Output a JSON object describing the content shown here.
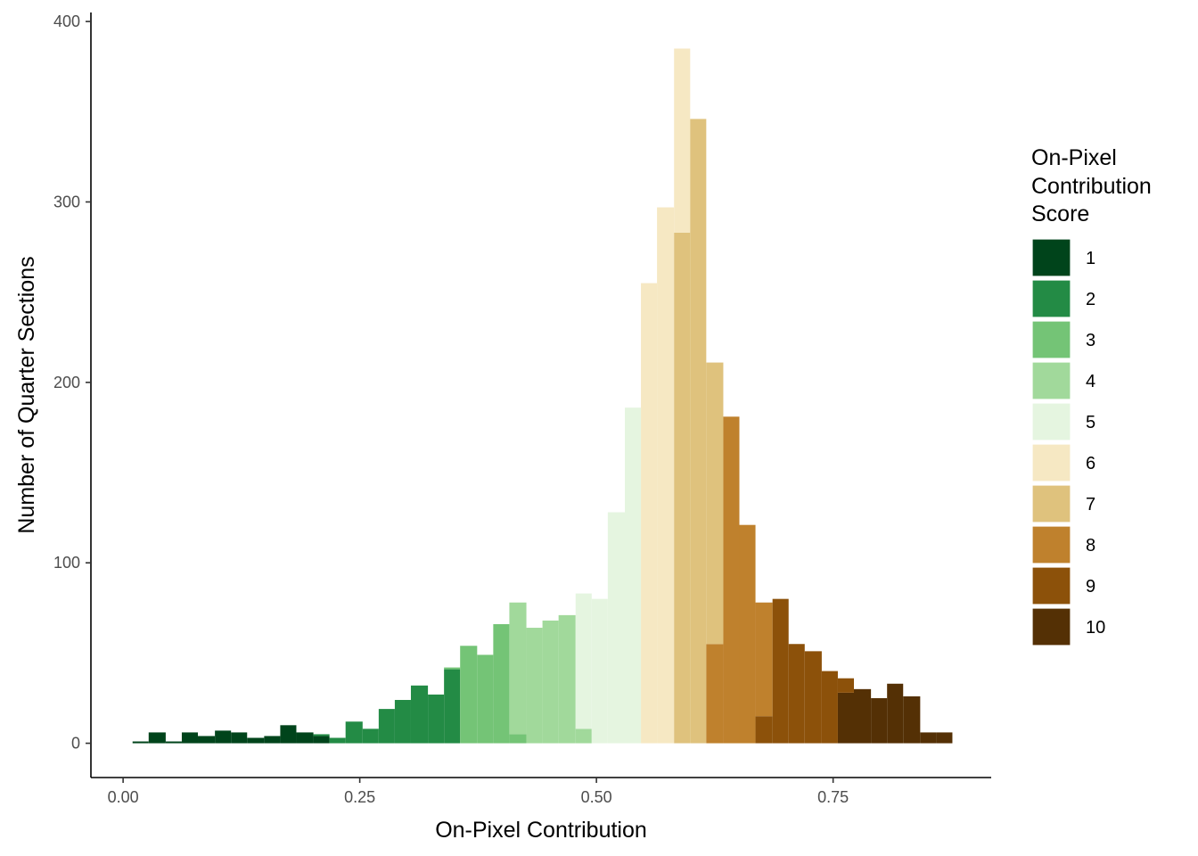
{
  "chart_data": {
    "type": "bar",
    "subtype": "stacked-histogram",
    "xlabel": "On-Pixel Contribution",
    "ylabel": "Number of Quarter Sections",
    "xlim": [
      -0.034,
      0.917
    ],
    "ylim": [
      -19,
      405
    ],
    "x_ticks": [
      0.0,
      0.25,
      0.5,
      0.75
    ],
    "x_tick_labels": [
      "0.00",
      "0.25",
      "0.50",
      "0.75"
    ],
    "y_ticks": [
      0,
      100,
      200,
      300,
      400
    ],
    "y_tick_labels": [
      "0",
      "100",
      "200",
      "300",
      "400"
    ],
    "grid": false,
    "legend": {
      "title_lines": [
        "On-Pixel",
        "Contribution",
        "Score"
      ],
      "placement": "right",
      "items": [
        {
          "label": "1",
          "color": "#00441b"
        },
        {
          "label": "2",
          "color": "#238b45"
        },
        {
          "label": "3",
          "color": "#74c476"
        },
        {
          "label": "4",
          "color": "#a1d99b"
        },
        {
          "label": "5",
          "color": "#e5f5e0"
        },
        {
          "label": "6",
          "color": "#f6e8c3"
        },
        {
          "label": "7",
          "color": "#dfc27d"
        },
        {
          "label": "8",
          "color": "#bf812d"
        },
        {
          "label": "9",
          "color": "#8c510a"
        },
        {
          "label": "10",
          "color": "#543005"
        }
      ]
    },
    "bins": [
      {
        "x0": 0.01,
        "x1": 0.027,
        "segments": [
          {
            "score": 1,
            "count": 1
          }
        ]
      },
      {
        "x0": 0.027,
        "x1": 0.045,
        "segments": [
          {
            "score": 1,
            "count": 6
          }
        ]
      },
      {
        "x0": 0.045,
        "x1": 0.062,
        "segments": [
          {
            "score": 1,
            "count": 1
          }
        ]
      },
      {
        "x0": 0.062,
        "x1": 0.079,
        "segments": [
          {
            "score": 1,
            "count": 6
          }
        ]
      },
      {
        "x0": 0.079,
        "x1": 0.097,
        "segments": [
          {
            "score": 1,
            "count": 4
          }
        ]
      },
      {
        "x0": 0.097,
        "x1": 0.114,
        "segments": [
          {
            "score": 1,
            "count": 7
          }
        ]
      },
      {
        "x0": 0.114,
        "x1": 0.131,
        "segments": [
          {
            "score": 1,
            "count": 6
          }
        ]
      },
      {
        "x0": 0.131,
        "x1": 0.149,
        "segments": [
          {
            "score": 1,
            "count": 3
          }
        ]
      },
      {
        "x0": 0.149,
        "x1": 0.166,
        "segments": [
          {
            "score": 1,
            "count": 4
          }
        ]
      },
      {
        "x0": 0.166,
        "x1": 0.183,
        "segments": [
          {
            "score": 1,
            "count": 10
          }
        ]
      },
      {
        "x0": 0.183,
        "x1": 0.201,
        "segments": [
          {
            "score": 1,
            "count": 6
          }
        ]
      },
      {
        "x0": 0.201,
        "x1": 0.218,
        "segments": [
          {
            "score": 1,
            "count": 4
          },
          {
            "score": 2,
            "count": 1
          }
        ]
      },
      {
        "x0": 0.218,
        "x1": 0.235,
        "segments": [
          {
            "score": 2,
            "count": 3
          }
        ]
      },
      {
        "x0": 0.235,
        "x1": 0.253,
        "segments": [
          {
            "score": 2,
            "count": 12
          }
        ]
      },
      {
        "x0": 0.253,
        "x1": 0.27,
        "segments": [
          {
            "score": 2,
            "count": 8
          }
        ]
      },
      {
        "x0": 0.27,
        "x1": 0.287,
        "segments": [
          {
            "score": 2,
            "count": 19
          }
        ]
      },
      {
        "x0": 0.287,
        "x1": 0.304,
        "segments": [
          {
            "score": 2,
            "count": 24
          }
        ]
      },
      {
        "x0": 0.304,
        "x1": 0.322,
        "segments": [
          {
            "score": 2,
            "count": 32
          }
        ]
      },
      {
        "x0": 0.322,
        "x1": 0.339,
        "segments": [
          {
            "score": 2,
            "count": 27
          }
        ]
      },
      {
        "x0": 0.339,
        "x1": 0.356,
        "segments": [
          {
            "score": 2,
            "count": 41
          },
          {
            "score": 3,
            "count": 1
          }
        ]
      },
      {
        "x0": 0.356,
        "x1": 0.374,
        "segments": [
          {
            "score": 3,
            "count": 54
          }
        ]
      },
      {
        "x0": 0.374,
        "x1": 0.391,
        "segments": [
          {
            "score": 3,
            "count": 49
          }
        ]
      },
      {
        "x0": 0.391,
        "x1": 0.408,
        "segments": [
          {
            "score": 3,
            "count": 66
          }
        ]
      },
      {
        "x0": 0.408,
        "x1": 0.426,
        "segments": [
          {
            "score": 3,
            "count": 5
          },
          {
            "score": 4,
            "count": 73
          }
        ]
      },
      {
        "x0": 0.426,
        "x1": 0.443,
        "segments": [
          {
            "score": 4,
            "count": 64
          }
        ]
      },
      {
        "x0": 0.443,
        "x1": 0.46,
        "segments": [
          {
            "score": 4,
            "count": 68
          }
        ]
      },
      {
        "x0": 0.46,
        "x1": 0.478,
        "segments": [
          {
            "score": 4,
            "count": 71
          }
        ]
      },
      {
        "x0": 0.478,
        "x1": 0.495,
        "segments": [
          {
            "score": 4,
            "count": 8
          },
          {
            "score": 5,
            "count": 75
          }
        ]
      },
      {
        "x0": 0.495,
        "x1": 0.512,
        "segments": [
          {
            "score": 5,
            "count": 80
          }
        ]
      },
      {
        "x0": 0.512,
        "x1": 0.53,
        "segments": [
          {
            "score": 5,
            "count": 128
          }
        ]
      },
      {
        "x0": 0.53,
        "x1": 0.547,
        "segments": [
          {
            "score": 5,
            "count": 186
          }
        ]
      },
      {
        "x0": 0.547,
        "x1": 0.564,
        "segments": [
          {
            "score": 6,
            "count": 255
          }
        ]
      },
      {
        "x0": 0.564,
        "x1": 0.582,
        "segments": [
          {
            "score": 6,
            "count": 297
          }
        ]
      },
      {
        "x0": 0.582,
        "x1": 0.599,
        "segments": [
          {
            "score": 7,
            "count": 283
          },
          {
            "score": 6,
            "count": 102
          }
        ]
      },
      {
        "x0": 0.599,
        "x1": 0.616,
        "segments": [
          {
            "score": 7,
            "count": 346
          }
        ]
      },
      {
        "x0": 0.616,
        "x1": 0.634,
        "segments": [
          {
            "score": 8,
            "count": 55
          },
          {
            "score": 7,
            "count": 156
          }
        ]
      },
      {
        "x0": 0.634,
        "x1": 0.651,
        "segments": [
          {
            "score": 8,
            "count": 181
          }
        ]
      },
      {
        "x0": 0.651,
        "x1": 0.668,
        "segments": [
          {
            "score": 8,
            "count": 121
          }
        ]
      },
      {
        "x0": 0.668,
        "x1": 0.686,
        "segments": [
          {
            "score": 9,
            "count": 15
          },
          {
            "score": 8,
            "count": 63
          }
        ]
      },
      {
        "x0": 0.686,
        "x1": 0.703,
        "segments": [
          {
            "score": 9,
            "count": 80
          }
        ]
      },
      {
        "x0": 0.703,
        "x1": 0.72,
        "segments": [
          {
            "score": 9,
            "count": 55
          }
        ]
      },
      {
        "x0": 0.72,
        "x1": 0.738,
        "segments": [
          {
            "score": 9,
            "count": 51
          }
        ]
      },
      {
        "x0": 0.738,
        "x1": 0.755,
        "segments": [
          {
            "score": 9,
            "count": 40
          }
        ]
      },
      {
        "x0": 0.755,
        "x1": 0.772,
        "segments": [
          {
            "score": 10,
            "count": 28
          },
          {
            "score": 9,
            "count": 8
          }
        ]
      },
      {
        "x0": 0.772,
        "x1": 0.79,
        "segments": [
          {
            "score": 10,
            "count": 30
          }
        ]
      },
      {
        "x0": 0.79,
        "x1": 0.807,
        "segments": [
          {
            "score": 10,
            "count": 25
          }
        ]
      },
      {
        "x0": 0.807,
        "x1": 0.824,
        "segments": [
          {
            "score": 10,
            "count": 33
          }
        ]
      },
      {
        "x0": 0.824,
        "x1": 0.842,
        "segments": [
          {
            "score": 10,
            "count": 26
          }
        ]
      },
      {
        "x0": 0.842,
        "x1": 0.859,
        "segments": [
          {
            "score": 10,
            "count": 6
          }
        ]
      },
      {
        "x0": 0.859,
        "x1": 0.876,
        "segments": [
          {
            "score": 10,
            "count": 6
          }
        ]
      }
    ]
  }
}
